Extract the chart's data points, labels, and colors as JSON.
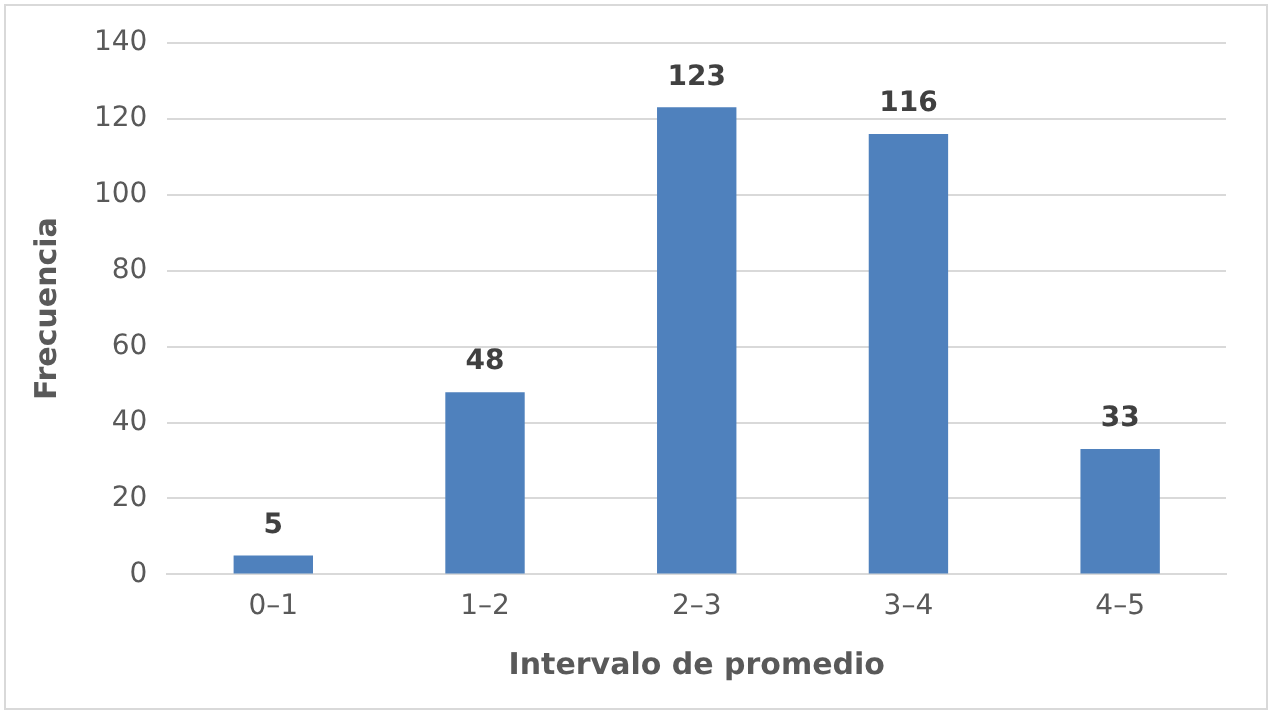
{
  "chart_data": {
    "type": "bar",
    "xlabel": "Intervalo de promedio",
    "ylabel": "Frecuencia",
    "categories": [
      "0–1",
      "1–2",
      "2–3",
      "3–4",
      "4–5"
    ],
    "values": [
      5,
      48,
      123,
      116,
      33
    ],
    "color": "#4f81bd",
    "ylim": [
      0,
      140
    ],
    "yticks": [
      0,
      20,
      40,
      60,
      80,
      100,
      120,
      140
    ],
    "grid": "y",
    "data_labels": true,
    "legend": false
  }
}
